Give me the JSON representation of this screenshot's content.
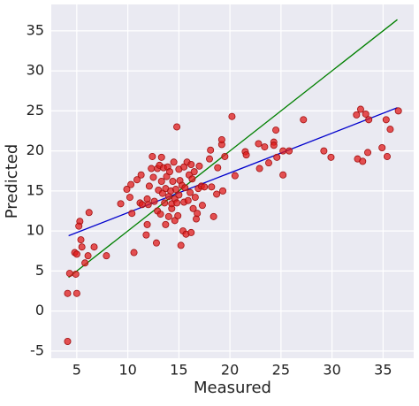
{
  "chart_data": {
    "type": "scatter",
    "xlabel": "Measured",
    "ylabel": "Predicted",
    "xlim": [
      2.5,
      38
    ],
    "ylim": [
      -5.9,
      38.3
    ],
    "xticks": [
      5,
      10,
      15,
      20,
      25,
      30,
      35
    ],
    "yticks": [
      -5,
      0,
      5,
      10,
      15,
      20,
      25,
      30,
      35
    ],
    "grid": true,
    "color": "#e01b1b",
    "x": [
      4.1,
      4.1,
      4.3,
      4.9,
      4.8,
      5.0,
      5.0,
      5.3,
      5.2,
      5.4,
      5.5,
      5.8,
      6.1,
      6.2,
      6.7,
      7.9,
      9.3,
      9.9,
      10.2,
      10.3,
      10.4,
      10.6,
      10.9,
      11.2,
      11.3,
      11.4,
      11.8,
      11.9,
      11.9,
      12.0,
      12.1,
      12.3,
      12.4,
      12.5,
      12.6,
      12.8,
      12.9,
      12.9,
      13.0,
      13.1,
      13.2,
      13.3,
      13.3,
      13.4,
      13.5,
      13.6,
      13.7,
      13.7,
      13.8,
      13.9,
      14.0,
      14.0,
      14.1,
      14.2,
      14.3,
      14.3,
      14.4,
      14.5,
      14.6,
      14.6,
      14.7,
      14.8,
      14.8,
      14.9,
      15.0,
      15.0,
      15.1,
      15.2,
      15.3,
      15.4,
      15.5,
      15.5,
      15.6,
      15.7,
      15.8,
      15.9,
      16.0,
      16.1,
      16.2,
      16.2,
      16.3,
      16.4,
      16.5,
      16.6,
      16.7,
      16.8,
      16.9,
      17.0,
      17.2,
      17.3,
      17.5,
      18.0,
      18.1,
      18.2,
      18.4,
      18.7,
      18.8,
      19.2,
      19.2,
      19.3,
      19.5,
      20.2,
      20.5,
      21.5,
      21.6,
      22.8,
      22.9,
      23.4,
      23.8,
      24.3,
      24.3,
      24.5,
      24.6,
      25.2,
      25.2,
      25.8,
      27.2,
      29.2,
      29.9,
      32.4,
      32.5,
      32.8,
      33.0,
      33.3,
      33.5,
      33.6,
      34.9,
      35.3,
      35.4,
      35.7,
      36.5
    ],
    "values": [
      -3.8,
      2.2,
      4.7,
      4.6,
      7.3,
      7.1,
      2.2,
      11.2,
      10.6,
      8.9,
      8.0,
      6.0,
      6.9,
      12.3,
      8.0,
      6.9,
      13.4,
      15.2,
      14.2,
      15.8,
      12.2,
      7.3,
      16.4,
      13.5,
      17.0,
      13.3,
      9.5,
      10.8,
      14.0,
      13.3,
      15.6,
      17.8,
      19.3,
      16.7,
      13.7,
      8.5,
      12.5,
      17.8,
      15.1,
      18.2,
      12.1,
      19.2,
      16.2,
      14.7,
      17.9,
      13.5,
      15.3,
      10.8,
      16.8,
      18.0,
      14.3,
      11.8,
      17.4,
      15.0,
      12.8,
      13.4,
      16.2,
      18.6,
      11.3,
      14.0,
      15.2,
      13.5,
      23.0,
      11.9,
      17.7,
      14.5,
      16.3,
      8.2,
      15.7,
      10.0,
      18.0,
      13.6,
      15.4,
      9.6,
      18.6,
      13.8,
      17.0,
      14.8,
      18.3,
      9.8,
      16.5,
      12.8,
      17.4,
      14.2,
      11.5,
      12.2,
      15.3,
      18.1,
      15.6,
      13.2,
      15.5,
      19.0,
      20.1,
      15.5,
      11.8,
      14.6,
      17.9,
      20.8,
      21.4,
      15.0,
      19.3,
      24.3,
      16.9,
      19.9,
      19.5,
      20.9,
      17.8,
      20.5,
      18.5,
      21.1,
      20.7,
      22.6,
      19.2,
      17.0,
      20.0,
      20.0,
      23.9,
      20.0,
      19.2,
      24.5,
      19.0,
      25.2,
      18.7,
      24.6,
      19.8,
      23.9,
      20.4,
      23.9,
      19.3,
      22.7,
      25.0
    ],
    "lines": [
      {
        "color": "#008000",
        "x": [
          4.2,
          36.4
        ],
        "values": [
          4.2,
          36.4
        ]
      },
      {
        "color": "#0000cc",
        "x": [
          4.2,
          36.4
        ],
        "values": [
          9.4,
          25.4
        ]
      }
    ]
  }
}
